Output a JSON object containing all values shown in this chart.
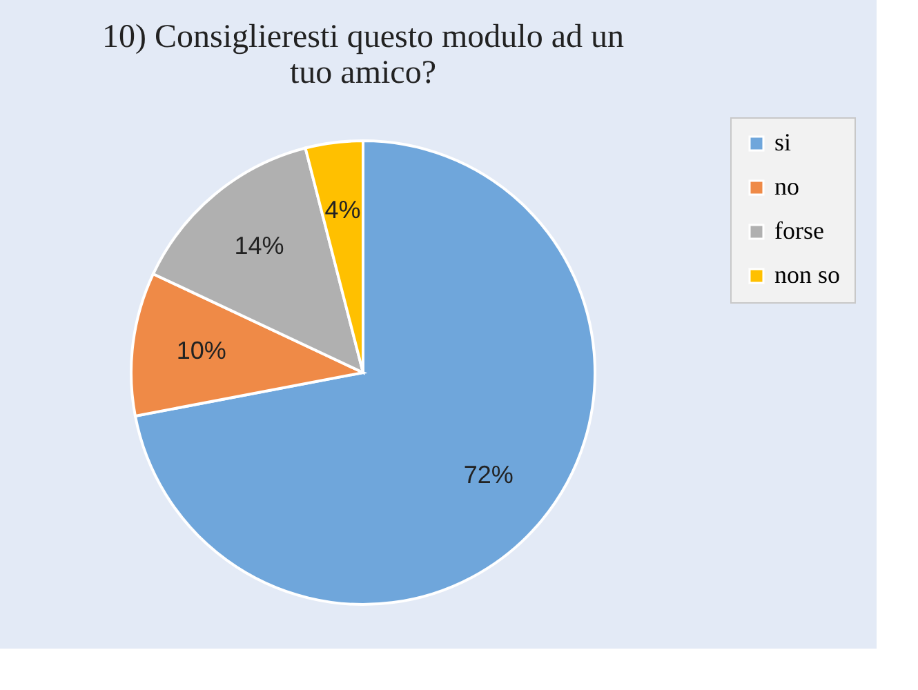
{
  "chart_data": {
    "type": "pie",
    "title": "10) Consiglieresti questo modulo ad un tuo amico?",
    "categories": [
      "si",
      "no",
      "forse",
      "non so"
    ],
    "values": [
      72,
      10,
      14,
      4
    ],
    "colors": [
      "#6fa6db",
      "#ef8a47",
      "#b0b0b0",
      "#ffc000"
    ],
    "value_labels": [
      "72%",
      "10%",
      "14%",
      "4%"
    ],
    "legend": "right"
  }
}
